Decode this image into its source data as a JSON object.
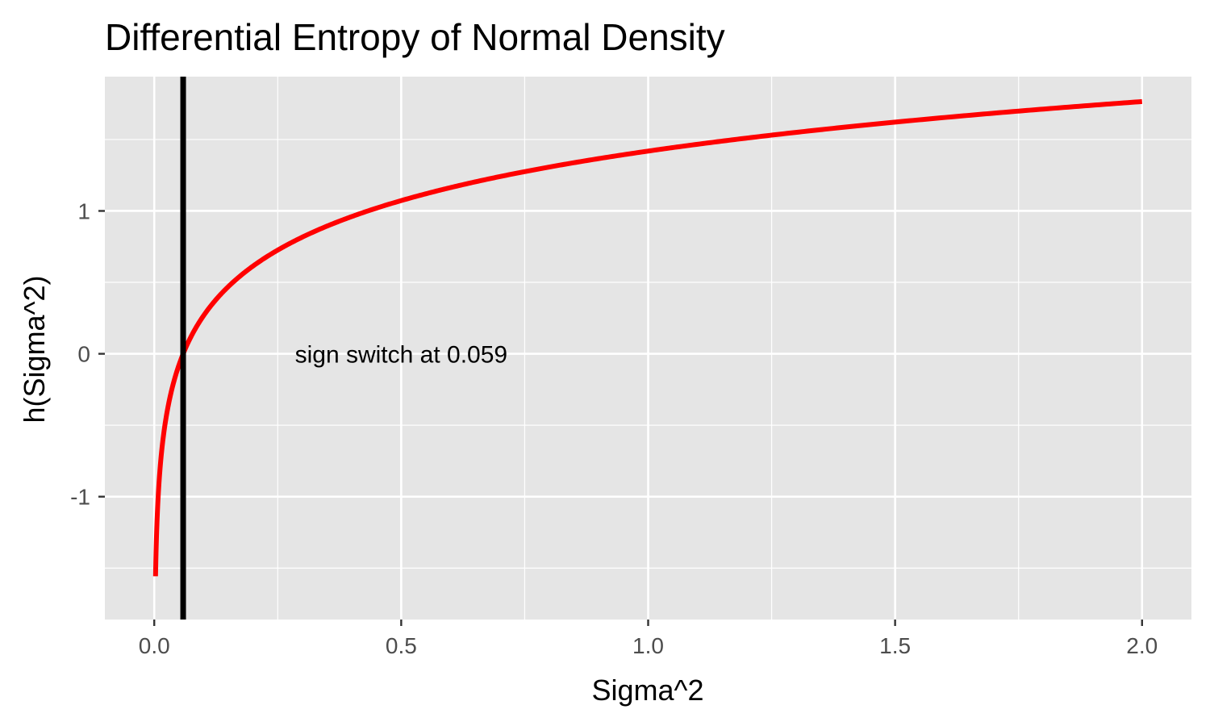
{
  "chart_data": {
    "type": "line",
    "title": "Differential Entropy of Normal Density",
    "xlabel": "Sigma^2",
    "ylabel": "h(Sigma^2)",
    "xlim": [
      -0.1,
      2.1
    ],
    "ylim": [
      -1.86,
      1.94
    ],
    "x_ticks": [
      {
        "value": 0.0,
        "label": "0.0"
      },
      {
        "value": 0.5,
        "label": "0.5"
      },
      {
        "value": 1.0,
        "label": "1.0"
      },
      {
        "value": 1.5,
        "label": "1.5"
      },
      {
        "value": 2.0,
        "label": "2.0"
      }
    ],
    "y_ticks": [
      {
        "value": -1,
        "label": "-1"
      },
      {
        "value": 0,
        "label": "0"
      },
      {
        "value": 1,
        "label": "1"
      }
    ],
    "x_minor_gridlines": [
      0.25,
      0.75,
      1.25,
      1.75
    ],
    "y_minor_gridlines": [
      -1.5,
      -0.5,
      0.5,
      1.5
    ],
    "grid": true,
    "background": "#e5e5e5",
    "series": [
      {
        "color": "#ff0000",
        "x_range": [
          0.0026,
          2.0
        ],
        "formula": "0.5*ln(2*pi*e*x)",
        "points": [
          {
            "x": 0.0026,
            "y": -1.56
          },
          {
            "x": 0.01,
            "y": -0.88
          },
          {
            "x": 0.03,
            "y": -0.33
          },
          {
            "x": 0.0585,
            "y": 0.0
          },
          {
            "x": 0.1,
            "y": 0.27
          },
          {
            "x": 0.25,
            "y": 0.73
          },
          {
            "x": 0.5,
            "y": 1.07
          },
          {
            "x": 0.75,
            "y": 1.28
          },
          {
            "x": 1.0,
            "y": 1.42
          },
          {
            "x": 1.25,
            "y": 1.53
          },
          {
            "x": 1.5,
            "y": 1.62
          },
          {
            "x": 1.75,
            "y": 1.7
          },
          {
            "x": 2.0,
            "y": 1.77
          }
        ]
      }
    ],
    "vline": {
      "x": 0.0585,
      "color": "#000000"
    },
    "annotations": [
      {
        "text": "sign switch at 0.059",
        "x": 0.5,
        "y": 0.0
      }
    ]
  }
}
